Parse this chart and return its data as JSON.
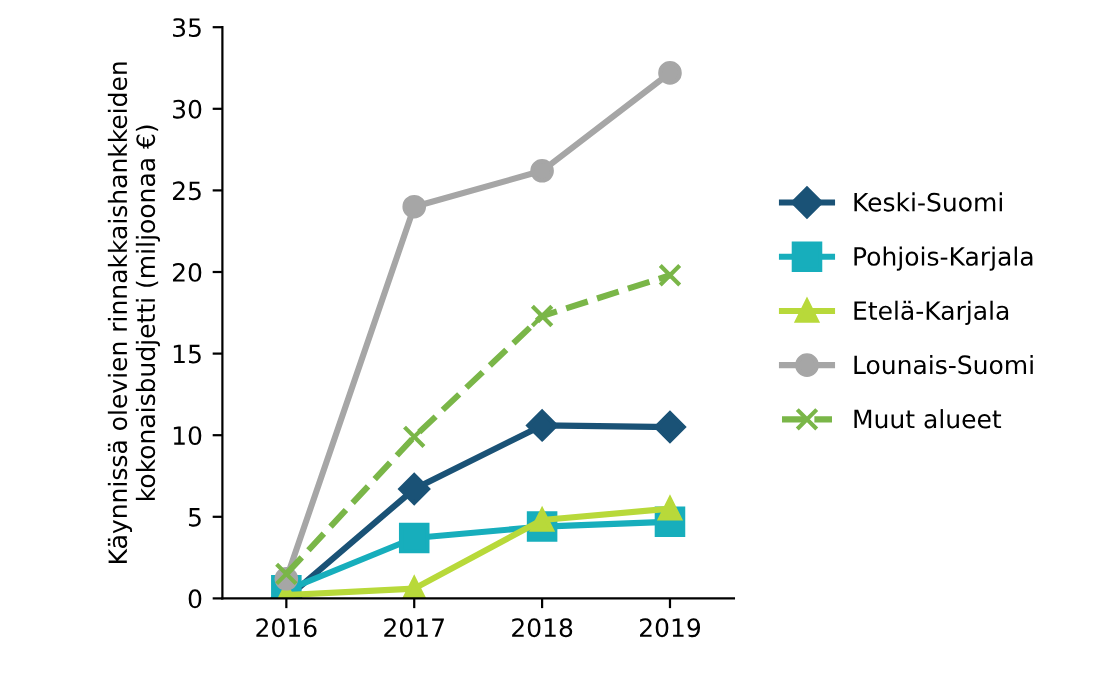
{
  "chart_data": {
    "type": "line",
    "ylabel": "Käynnissä olevien rinnakkaishankkeiden kokonaisbudjetti (miljoonaa €)",
    "categories": [
      "2016",
      "2017",
      "2018",
      "2019"
    ],
    "series": [
      {
        "name": "Keski-Suomi",
        "color": "#1a5276",
        "marker": "diamond",
        "values": [
          0,
          6.7,
          10.6,
          10.5
        ]
      },
      {
        "name": "Pohjois-Karjala",
        "color": "#17aebc",
        "marker": "square",
        "values": [
          0.5,
          3.7,
          4.4,
          4.7
        ]
      },
      {
        "name": "Etelä-Karjala",
        "color": "#b8d93a",
        "marker": "triangle",
        "values": [
          0.2,
          0.6,
          4.8,
          5.5
        ]
      },
      {
        "name": "Lounais-Suomi",
        "color": "#a6a6a6",
        "marker": "circle",
        "values": [
          1.2,
          24,
          26.2,
          32.2
        ]
      },
      {
        "name": "Muut alueet",
        "color": "#7ab648",
        "marker": "cross",
        "line_style": "dashed",
        "values": [
          1.5,
          9.9,
          17.3,
          19.8
        ]
      }
    ],
    "ylim": [
      0,
      35
    ],
    "yticks": [
      0,
      5,
      10,
      15,
      20,
      25,
      30,
      35
    ],
    "grid": false,
    "legend": "right"
  }
}
